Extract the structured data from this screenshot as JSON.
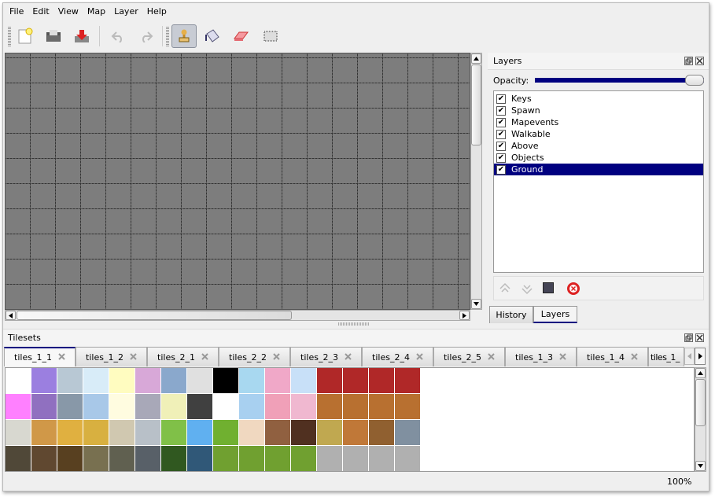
{
  "menu": [
    "File",
    "Edit",
    "View",
    "Map",
    "Layer",
    "Help"
  ],
  "toolbar": {
    "icons": [
      "new-file-icon",
      "open-folder-icon",
      "save-icon",
      "undo-icon",
      "redo-icon",
      "stamp-brush-icon",
      "bucket-fill-icon",
      "eraser-icon",
      "rect-select-icon"
    ],
    "active": "stamp-brush-icon"
  },
  "layers_panel": {
    "title": "Layers",
    "opacity_label": "Opacity:",
    "opacity": 1.0,
    "layers": [
      {
        "name": "Keys",
        "visible": true
      },
      {
        "name": "Spawn",
        "visible": true
      },
      {
        "name": "Mapevents",
        "visible": true
      },
      {
        "name": "Walkable",
        "visible": true
      },
      {
        "name": "Above",
        "visible": true
      },
      {
        "name": "Objects",
        "visible": true
      },
      {
        "name": "Ground",
        "visible": true,
        "selected": true
      }
    ],
    "tabs": [
      "History",
      "Layers"
    ],
    "active_tab": "Layers"
  },
  "tilesets_panel": {
    "title": "Tilesets",
    "tabs": [
      "tiles_1_1",
      "tiles_1_2",
      "tiles_2_1",
      "tiles_2_2",
      "tiles_2_3",
      "tiles_2_4",
      "tiles_2_5",
      "tiles_1_3",
      "tiles_1_4",
      "tiles_1_"
    ],
    "active_tab": "tiles_1_1",
    "tile_colors": [
      [
        "#ffffff",
        "#9b7fe0",
        "#b8c8d4",
        "#d8ecf8",
        "#fffcc0",
        "#d8a8d8",
        "#8aa8cc",
        "#e0e0e0",
        "#000000",
        "#a8d8f0",
        "#f0a8c8",
        "#c8e0f8",
        "#b02828",
        "#b02828",
        "#b02828",
        "#b02828"
      ],
      [
        "#ff80ff",
        "#9070c0",
        "#8898a8",
        "#a8c8e8",
        "#fffce0",
        "#a8a8b8",
        "#f0f0b8",
        "#404040",
        "#ffffff",
        "#a8d0f0",
        "#f0a0b8",
        "#f0b8d0",
        "#b87030",
        "#b87030",
        "#b87030",
        "#b87030"
      ],
      [
        "#d8d8d0",
        "#d09848",
        "#e0b040",
        "#d8b040",
        "#d0c8b0",
        "#b8c0c8",
        "#80c048",
        "#60b0f0",
        "#70b030",
        "#f0d8c0",
        "#906040",
        "#503020",
        "#c0a850",
        "#c07838",
        "#906030",
        "#8090a0"
      ],
      [
        "#504838",
        "#604830",
        "#584020",
        "#787050",
        "#606050",
        "#586068",
        "#305820",
        "#305878",
        "#70a030",
        "#70a030",
        "#70a030",
        "#70a030",
        "#b0b0b0",
        "#b0b0b0",
        "#b0b0b0",
        "#b0b0b0"
      ]
    ]
  },
  "status": {
    "zoom": "100%"
  },
  "colors": {
    "selection": "#000080",
    "map_bg": "#7d7d7d"
  }
}
